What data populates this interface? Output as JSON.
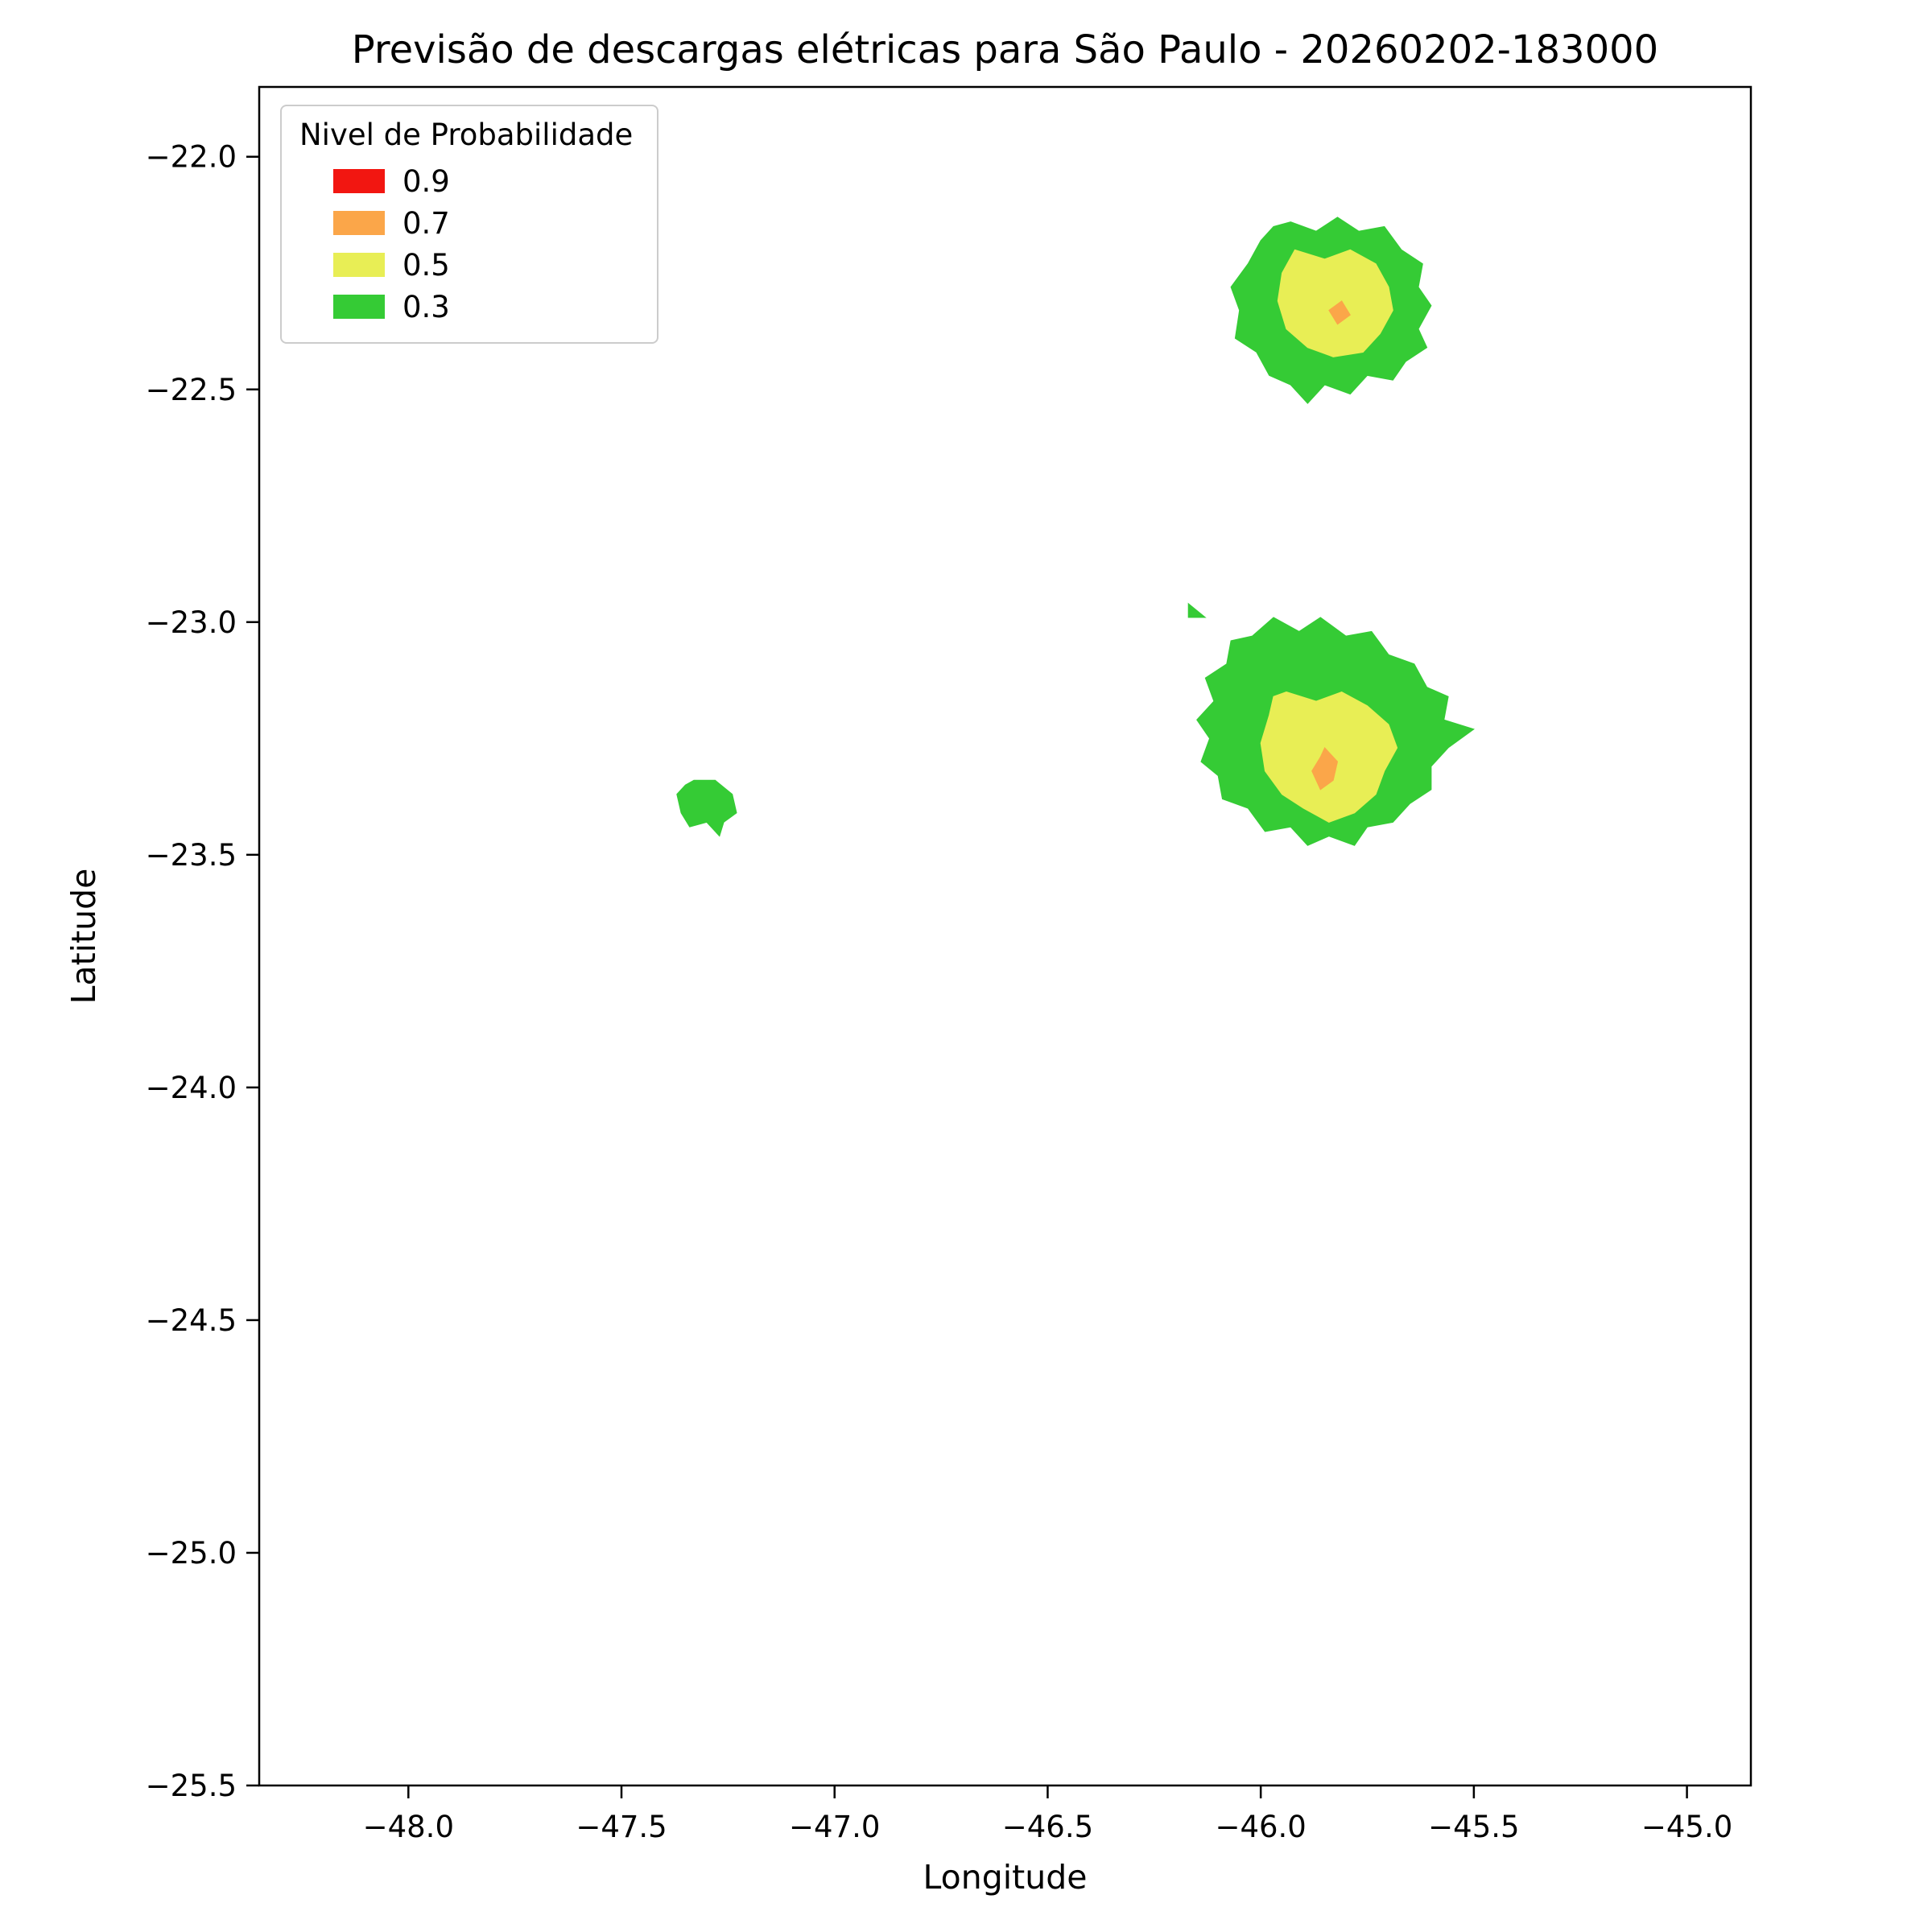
{
  "chart_data": {
    "type": "contour-map",
    "title": "Previsão de descargas elétricas para São Paulo - 20260202-183000",
    "xlabel": "Longitude",
    "ylabel": "Latitude",
    "xlim": [
      -48.35,
      -44.85
    ],
    "ylim": [
      -25.5,
      -21.85
    ],
    "grid": false,
    "xticks": [
      -48.0,
      -47.5,
      -47.0,
      -46.5,
      -46.0,
      -45.5,
      -45.0
    ],
    "xtick_labels": [
      "−48.0",
      "−47.5",
      "−47.0",
      "−46.5",
      "−46.0",
      "−45.5",
      "−45.0"
    ],
    "yticks": [
      -22.0,
      -22.5,
      -23.0,
      -23.5,
      -24.0,
      -24.5,
      -25.0,
      -25.5
    ],
    "ytick_labels": [
      "−22.0",
      "−22.5",
      "−23.0",
      "−23.5",
      "−24.0",
      "−24.5",
      "−25.0",
      "−25.5"
    ],
    "legend": {
      "title": "Nivel de Probabilidade",
      "position": "upper left",
      "entries": [
        {
          "label": "0.9",
          "color": "#F21611"
        },
        {
          "label": "0.7",
          "color": "#FBA649"
        },
        {
          "label": "0.5",
          "color": "#E8EE55"
        },
        {
          "label": "0.3",
          "color": "#35CB35"
        }
      ]
    },
    "regions": [
      {
        "name": "north-cell-green",
        "level": "0.3",
        "points": [
          [
            -45.93,
            -22.14
          ],
          [
            -45.87,
            -22.16
          ],
          [
            -45.82,
            -22.13
          ],
          [
            -45.77,
            -22.16
          ],
          [
            -45.71,
            -22.15
          ],
          [
            -45.67,
            -22.2
          ],
          [
            -45.62,
            -22.23
          ],
          [
            -45.63,
            -22.28
          ],
          [
            -45.6,
            -22.32
          ],
          [
            -45.63,
            -22.37
          ],
          [
            -45.61,
            -22.41
          ],
          [
            -45.66,
            -22.44
          ],
          [
            -45.69,
            -22.48
          ],
          [
            -45.75,
            -22.47
          ],
          [
            -45.79,
            -22.51
          ],
          [
            -45.85,
            -22.49
          ],
          [
            -45.89,
            -22.53
          ],
          [
            -45.93,
            -22.49
          ],
          [
            -45.98,
            -22.47
          ],
          [
            -46.01,
            -22.42
          ],
          [
            -46.06,
            -22.39
          ],
          [
            -46.05,
            -22.33
          ],
          [
            -46.07,
            -22.28
          ],
          [
            -46.03,
            -22.23
          ],
          [
            -46.0,
            -22.18
          ],
          [
            -45.97,
            -22.15
          ]
        ]
      },
      {
        "name": "central-cell-green",
        "level": "0.3",
        "points": [
          [
            -45.97,
            -22.99
          ],
          [
            -45.91,
            -23.02
          ],
          [
            -45.86,
            -22.99
          ],
          [
            -45.8,
            -23.03
          ],
          [
            -45.74,
            -23.02
          ],
          [
            -45.7,
            -23.07
          ],
          [
            -45.64,
            -23.09
          ],
          [
            -45.61,
            -23.14
          ],
          [
            -45.56,
            -23.16
          ],
          [
            -45.57,
            -23.21
          ],
          [
            -45.5,
            -23.23
          ],
          [
            -45.56,
            -23.27
          ],
          [
            -45.6,
            -23.31
          ],
          [
            -45.6,
            -23.36
          ],
          [
            -45.65,
            -23.39
          ],
          [
            -45.69,
            -23.43
          ],
          [
            -45.75,
            -23.44
          ],
          [
            -45.78,
            -23.48
          ],
          [
            -45.84,
            -23.46
          ],
          [
            -45.89,
            -23.48
          ],
          [
            -45.93,
            -23.44
          ],
          [
            -45.99,
            -23.45
          ],
          [
            -46.03,
            -23.4
          ],
          [
            -46.09,
            -23.38
          ],
          [
            -46.1,
            -23.33
          ],
          [
            -46.14,
            -23.3
          ],
          [
            -46.12,
            -23.25
          ],
          [
            -46.15,
            -23.21
          ],
          [
            -46.11,
            -23.17
          ],
          [
            -46.13,
            -23.12
          ],
          [
            -46.08,
            -23.09
          ],
          [
            -46.07,
            -23.04
          ],
          [
            -46.02,
            -23.03
          ]
        ]
      },
      {
        "name": "west-cell-green",
        "level": "0.3",
        "points": [
          [
            -47.33,
            -23.34
          ],
          [
            -47.28,
            -23.34
          ],
          [
            -47.24,
            -23.37
          ],
          [
            -47.23,
            -23.41
          ],
          [
            -47.26,
            -23.43
          ],
          [
            -47.27,
            -23.46
          ],
          [
            -47.3,
            -23.43
          ],
          [
            -47.34,
            -23.44
          ],
          [
            -47.36,
            -23.41
          ],
          [
            -47.37,
            -23.37
          ],
          [
            -47.35,
            -23.35
          ]
        ]
      },
      {
        "name": "speck-green",
        "level": "0.3",
        "points": [
          [
            -46.17,
            -22.96
          ],
          [
            -46.13,
            -22.99
          ],
          [
            -46.17,
            -22.99
          ]
        ]
      },
      {
        "name": "north-cell-yellow",
        "level": "0.5",
        "points": [
          [
            -45.92,
            -22.2
          ],
          [
            -45.85,
            -22.22
          ],
          [
            -45.79,
            -22.2
          ],
          [
            -45.73,
            -22.23
          ],
          [
            -45.7,
            -22.28
          ],
          [
            -45.69,
            -22.33
          ],
          [
            -45.72,
            -22.38
          ],
          [
            -45.76,
            -22.42
          ],
          [
            -45.83,
            -22.43
          ],
          [
            -45.89,
            -22.41
          ],
          [
            -45.94,
            -22.37
          ],
          [
            -45.96,
            -22.31
          ],
          [
            -45.95,
            -22.25
          ]
        ]
      },
      {
        "name": "central-cell-yellow",
        "level": "0.5",
        "points": [
          [
            -45.94,
            -23.15
          ],
          [
            -45.87,
            -23.17
          ],
          [
            -45.81,
            -23.15
          ],
          [
            -45.75,
            -23.18
          ],
          [
            -45.7,
            -23.22
          ],
          [
            -45.68,
            -23.27
          ],
          [
            -45.71,
            -23.32
          ],
          [
            -45.73,
            -23.37
          ],
          [
            -45.78,
            -23.41
          ],
          [
            -45.84,
            -23.43
          ],
          [
            -45.9,
            -23.4
          ],
          [
            -45.95,
            -23.37
          ],
          [
            -45.99,
            -23.32
          ],
          [
            -46.0,
            -23.26
          ],
          [
            -45.98,
            -23.2
          ],
          [
            -45.97,
            -23.16
          ]
        ]
      },
      {
        "name": "north-cell-orange",
        "level": "0.7",
        "points": [
          [
            -45.81,
            -22.31
          ],
          [
            -45.84,
            -22.33
          ],
          [
            -45.82,
            -22.36
          ],
          [
            -45.79,
            -22.34
          ]
        ]
      },
      {
        "name": "central-cell-orange",
        "level": "0.7",
        "points": [
          [
            -45.85,
            -23.27
          ],
          [
            -45.82,
            -23.3
          ],
          [
            -45.83,
            -23.34
          ],
          [
            -45.86,
            -23.36
          ],
          [
            -45.88,
            -23.32
          ],
          [
            -45.86,
            -23.29
          ]
        ]
      }
    ]
  }
}
